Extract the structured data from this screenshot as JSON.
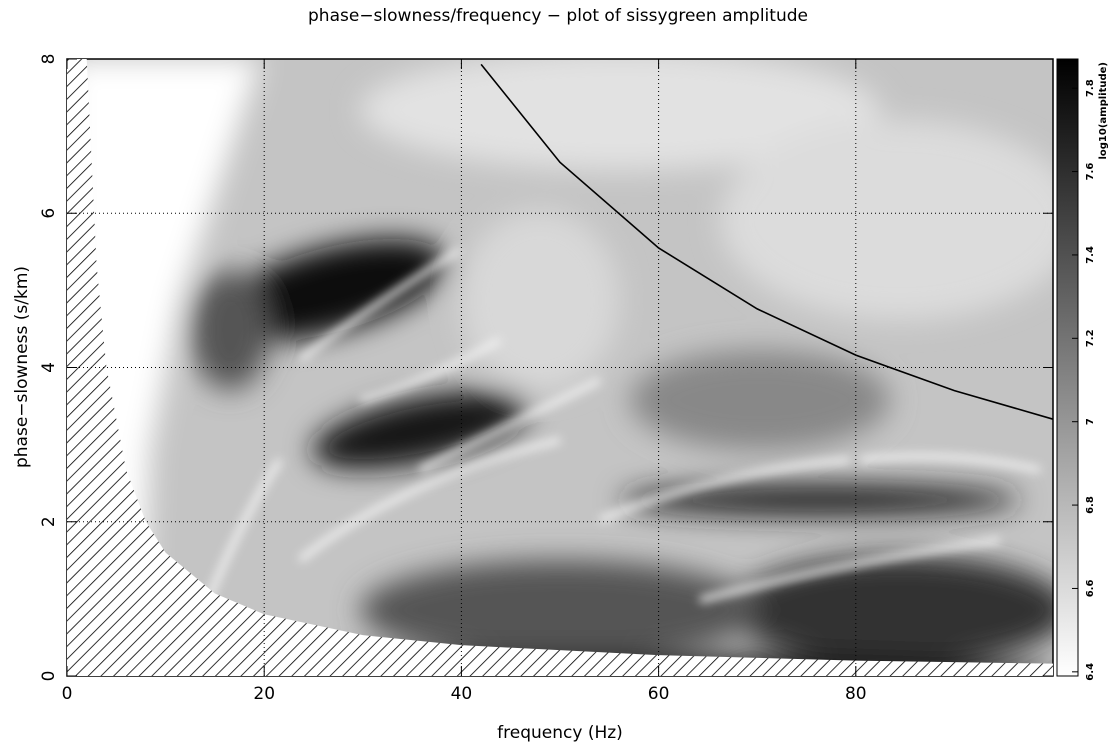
{
  "chart_data": {
    "type": "heatmap",
    "title": "phase−slowness/frequency − plot of sissygreen amplitude",
    "xlabel": "frequency (Hz)",
    "ylabel": "phase−slowness (s/km)",
    "xlim": [
      0,
      100
    ],
    "ylim": [
      0,
      8
    ],
    "xticks": [
      0,
      20,
      40,
      60,
      80
    ],
    "yticks": [
      0,
      2,
      4,
      6,
      8
    ],
    "grid": true,
    "colorbar": {
      "label": "log10(amplitude)",
      "lim": [
        6.39,
        7.87
      ],
      "ticks": [
        6.4,
        6.6,
        6.8,
        7,
        7.2,
        7.4,
        7.6,
        7.8
      ],
      "colors": [
        "#ffffff",
        "#000000"
      ]
    },
    "lines": [
      {
        "x": [
          42,
          50,
          60,
          70,
          80,
          90,
          100
        ],
        "values": [
          7.93,
          6.66,
          5.55,
          4.76,
          4.16,
          3.7,
          3.33
        ],
        "color": "#000000"
      }
    ],
    "hatched": {
      "x": [
        2,
        3,
        4,
        6,
        8,
        10,
        15,
        20,
        30,
        40,
        60,
        80,
        100
      ],
      "values": [
        8,
        5.33,
        4,
        2.67,
        2,
        1.6,
        1.07,
        0.8,
        0.53,
        0.4,
        0.27,
        0.2,
        0.16
      ]
    }
  }
}
